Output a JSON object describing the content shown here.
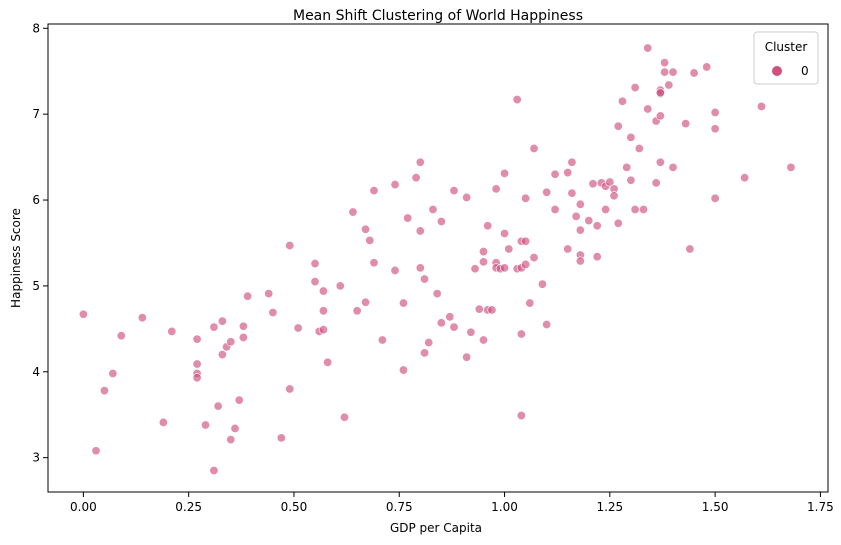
{
  "chart_data": {
    "type": "scatter",
    "title": "Mean Shift Clustering of World Happiness",
    "xlabel": "GDP per Capita",
    "ylabel": "Happiness Score",
    "xlim": [
      -0.084,
      1.768
    ],
    "ylim": [
      2.6,
      8.05
    ],
    "xticks": [
      0.0,
      0.25,
      0.5,
      0.75,
      1.0,
      1.25,
      1.5,
      1.75
    ],
    "xtick_labels": [
      "0.00",
      "0.25",
      "0.50",
      "0.75",
      "1.00",
      "1.25",
      "1.50",
      "1.75"
    ],
    "yticks": [
      3,
      4,
      5,
      6,
      7,
      8
    ],
    "ytick_labels": [
      "3",
      "4",
      "5",
      "6",
      "7",
      "8"
    ],
    "grid": false,
    "legend": {
      "title": "Cluster",
      "placement": "top-right",
      "entries": [
        "0"
      ]
    },
    "color": "#d0507f",
    "series": [
      {
        "name": "0",
        "points": [
          [
            0.0,
            4.67
          ],
          [
            0.03,
            3.08
          ],
          [
            0.05,
            3.78
          ],
          [
            0.07,
            3.98
          ],
          [
            0.09,
            4.42
          ],
          [
            0.14,
            4.63
          ],
          [
            0.19,
            3.41
          ],
          [
            0.21,
            4.47
          ],
          [
            0.27,
            4.38
          ],
          [
            0.27,
            4.09
          ],
          [
            0.27,
            3.98
          ],
          [
            0.27,
            3.93
          ],
          [
            0.29,
            3.38
          ],
          [
            0.31,
            4.52
          ],
          [
            0.31,
            2.85
          ],
          [
            0.32,
            3.6
          ],
          [
            0.33,
            4.59
          ],
          [
            0.33,
            4.2
          ],
          [
            0.34,
            4.29
          ],
          [
            0.35,
            4.35
          ],
          [
            0.35,
            3.21
          ],
          [
            0.36,
            3.34
          ],
          [
            0.37,
            3.67
          ],
          [
            0.38,
            4.53
          ],
          [
            0.38,
            4.4
          ],
          [
            0.39,
            4.88
          ],
          [
            0.44,
            4.91
          ],
          [
            0.45,
            4.69
          ],
          [
            0.47,
            3.23
          ],
          [
            0.49,
            5.47
          ],
          [
            0.49,
            3.8
          ],
          [
            0.51,
            4.51
          ],
          [
            0.55,
            5.26
          ],
          [
            0.55,
            5.05
          ],
          [
            0.56,
            4.47
          ],
          [
            0.57,
            4.49
          ],
          [
            0.57,
            4.94
          ],
          [
            0.57,
            4.71
          ],
          [
            0.58,
            4.11
          ],
          [
            0.61,
            5.0
          ],
          [
            0.62,
            3.47
          ],
          [
            0.64,
            5.86
          ],
          [
            0.65,
            4.71
          ],
          [
            0.67,
            4.81
          ],
          [
            0.67,
            5.66
          ],
          [
            0.68,
            5.53
          ],
          [
            0.69,
            6.11
          ],
          [
            0.69,
            5.27
          ],
          [
            0.71,
            4.37
          ],
          [
            0.74,
            6.18
          ],
          [
            0.74,
            5.18
          ],
          [
            0.76,
            4.02
          ],
          [
            0.76,
            4.8
          ],
          [
            0.77,
            5.79
          ],
          [
            0.79,
            6.26
          ],
          [
            0.8,
            6.44
          ],
          [
            0.8,
            5.21
          ],
          [
            0.8,
            5.64
          ],
          [
            0.81,
            5.08
          ],
          [
            0.81,
            4.22
          ],
          [
            0.82,
            4.34
          ],
          [
            0.83,
            5.89
          ],
          [
            0.84,
            4.91
          ],
          [
            0.85,
            4.57
          ],
          [
            0.85,
            5.75
          ],
          [
            0.87,
            4.64
          ],
          [
            0.88,
            6.11
          ],
          [
            0.88,
            4.52
          ],
          [
            0.91,
            6.03
          ],
          [
            0.91,
            4.17
          ],
          [
            0.92,
            4.46
          ],
          [
            0.93,
            5.2
          ],
          [
            0.94,
            4.73
          ],
          [
            0.95,
            5.28
          ],
          [
            0.95,
            5.4
          ],
          [
            0.95,
            4.37
          ],
          [
            0.96,
            5.7
          ],
          [
            0.96,
            4.72
          ],
          [
            0.97,
            4.72
          ],
          [
            0.98,
            6.13
          ],
          [
            0.98,
            5.27
          ],
          [
            0.98,
            5.21
          ],
          [
            0.99,
            5.2
          ],
          [
            1.0,
            6.31
          ],
          [
            1.0,
            5.61
          ],
          [
            1.0,
            5.21
          ],
          [
            1.01,
            5.43
          ],
          [
            1.03,
            5.2
          ],
          [
            1.03,
            7.17
          ],
          [
            1.04,
            5.21
          ],
          [
            1.04,
            5.52
          ],
          [
            1.04,
            4.44
          ],
          [
            1.04,
            3.49
          ],
          [
            1.05,
            5.52
          ],
          [
            1.05,
            5.25
          ],
          [
            1.05,
            6.02
          ],
          [
            1.06,
            4.8
          ],
          [
            1.07,
            5.33
          ],
          [
            1.07,
            6.6
          ],
          [
            1.09,
            5.02
          ],
          [
            1.1,
            6.09
          ],
          [
            1.1,
            4.55
          ],
          [
            1.12,
            5.89
          ],
          [
            1.12,
            6.3
          ],
          [
            1.15,
            6.32
          ],
          [
            1.15,
            5.43
          ],
          [
            1.16,
            6.44
          ],
          [
            1.16,
            6.08
          ],
          [
            1.17,
            5.81
          ],
          [
            1.18,
            5.36
          ],
          [
            1.18,
            5.29
          ],
          [
            1.18,
            5.65
          ],
          [
            1.18,
            5.95
          ],
          [
            1.2,
            5.76
          ],
          [
            1.21,
            6.19
          ],
          [
            1.22,
            5.34
          ],
          [
            1.22,
            5.7
          ],
          [
            1.23,
            6.2
          ],
          [
            1.24,
            6.16
          ],
          [
            1.24,
            5.89
          ],
          [
            1.25,
            6.21
          ],
          [
            1.26,
            6.13
          ],
          [
            1.26,
            6.05
          ],
          [
            1.27,
            5.73
          ],
          [
            1.27,
            6.86
          ],
          [
            1.28,
            7.15
          ],
          [
            1.29,
            6.38
          ],
          [
            1.3,
            6.23
          ],
          [
            1.3,
            6.73
          ],
          [
            1.31,
            5.89
          ],
          [
            1.31,
            7.31
          ],
          [
            1.32,
            6.6
          ],
          [
            1.33,
            5.89
          ],
          [
            1.34,
            7.06
          ],
          [
            1.34,
            7.77
          ],
          [
            1.36,
            6.92
          ],
          [
            1.36,
            6.2
          ],
          [
            1.37,
            7.28
          ],
          [
            1.37,
            6.44
          ],
          [
            1.37,
            7.24
          ],
          [
            1.37,
            6.98
          ],
          [
            1.37,
            7.25
          ],
          [
            1.38,
            7.6
          ],
          [
            1.38,
            7.49
          ],
          [
            1.39,
            7.34
          ],
          [
            1.4,
            7.49
          ],
          [
            1.4,
            6.38
          ],
          [
            1.43,
            6.89
          ],
          [
            1.44,
            5.43
          ],
          [
            1.45,
            7.48
          ],
          [
            1.48,
            7.55
          ],
          [
            1.5,
            7.02
          ],
          [
            1.5,
            6.02
          ],
          [
            1.5,
            6.83
          ],
          [
            1.57,
            6.26
          ],
          [
            1.61,
            7.09
          ],
          [
            1.68,
            6.38
          ]
        ]
      }
    ]
  }
}
